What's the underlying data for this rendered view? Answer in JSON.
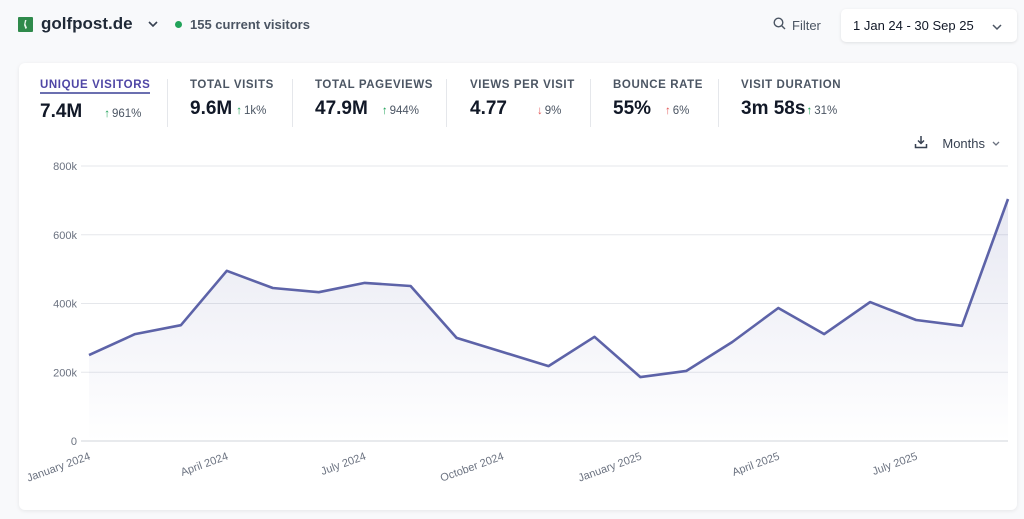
{
  "header": {
    "site_name": "golfpost.de",
    "current_visitors": "155 current visitors",
    "filter_label": "Filter",
    "date_range": "1 Jan 24 - 30 Sep 25"
  },
  "metrics": [
    {
      "label": "UNIQUE VISITORS",
      "value": "7.4M",
      "change": "961%",
      "direction": "up",
      "sentiment": "good",
      "active": true
    },
    {
      "label": "TOTAL VISITS",
      "value": "9.6M",
      "change": "1k%",
      "direction": "up",
      "sentiment": "good",
      "active": false
    },
    {
      "label": "TOTAL PAGEVIEWS",
      "value": "47.9M",
      "change": "944%",
      "direction": "up",
      "sentiment": "good",
      "active": false
    },
    {
      "label": "VIEWS PER VISIT",
      "value": "4.77",
      "change": "9%",
      "direction": "down",
      "sentiment": "bad",
      "active": false
    },
    {
      "label": "BOUNCE RATE",
      "value": "55%",
      "change": "6%",
      "direction": "up",
      "sentiment": "bad",
      "active": false
    },
    {
      "label": "VISIT DURATION",
      "value": "3m 58s",
      "change": "31%",
      "direction": "up",
      "sentiment": "good",
      "active": false
    }
  ],
  "controls": {
    "interval_label": "Months"
  },
  "colors": {
    "line": "#5d63a8",
    "accent": "#4f46a5",
    "good": "#22a35a",
    "bad": "#e45b5b"
  },
  "chart_data": {
    "type": "area",
    "title": "",
    "xlabel": "",
    "ylabel": "Unique visitors",
    "ylim": [
      0,
      800000
    ],
    "y_ticks": [
      0,
      200000,
      400000,
      600000,
      800000
    ],
    "y_tick_labels": [
      "0",
      "200k",
      "400k",
      "600k",
      "800k"
    ],
    "grid": true,
    "categories": [
      "January 2024",
      "February 2024",
      "March 2024",
      "April 2024",
      "May 2024",
      "June 2024",
      "July 2024",
      "August 2024",
      "September 2024",
      "October 2024",
      "November 2024",
      "December 2024",
      "January 2025",
      "February 2025",
      "March 2025",
      "April 2025",
      "May 2025",
      "June 2025",
      "July 2025",
      "August 2025",
      "September 2025"
    ],
    "x_tick_labels": [
      {
        "index": 0,
        "label": "January 2024"
      },
      {
        "index": 3,
        "label": "April 2024"
      },
      {
        "index": 6,
        "label": "July 2024"
      },
      {
        "index": 9,
        "label": "October 2024"
      },
      {
        "index": 12,
        "label": "January 2025"
      },
      {
        "index": 15,
        "label": "April 2025"
      },
      {
        "index": 18,
        "label": "July 2025"
      }
    ],
    "series": [
      {
        "name": "Unique visitors",
        "values": [
          250000,
          311000,
          337000,
          495000,
          445000,
          433000,
          460000,
          451000,
          300000,
          259000,
          218000,
          303000,
          186000,
          204000,
          288000,
          387000,
          311000,
          404000,
          352000,
          335000,
          704000
        ]
      }
    ]
  }
}
